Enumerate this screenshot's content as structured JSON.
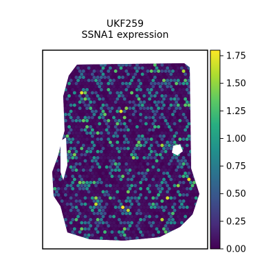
{
  "chart_data": {
    "type": "scatter",
    "title_line1": "UKF259",
    "title_line2": "SSNA1 expression",
    "xlabel": "",
    "ylabel": "",
    "grid": false,
    "axes_ticks": false,
    "colormap": "viridis",
    "colorbar": {
      "range": [
        0.0,
        1.8
      ],
      "ticks": [
        0.0,
        0.25,
        0.5,
        0.75,
        1.0,
        1.25,
        1.5,
        1.75
      ],
      "tick_labels": [
        "0.00",
        "0.25",
        "0.50",
        "0.75",
        "1.00",
        "1.25",
        "1.50",
        "1.75"
      ],
      "placement": "right"
    },
    "spot_count_approx": 2500,
    "value_distribution": "mostly 0.00 (dark purple), many around 0.5–1.0 (blue/teal), few above 1.25 (green/yellow)"
  },
  "colors": {
    "low": "#440154",
    "mid": "#21918c",
    "high": "#fde725"
  }
}
